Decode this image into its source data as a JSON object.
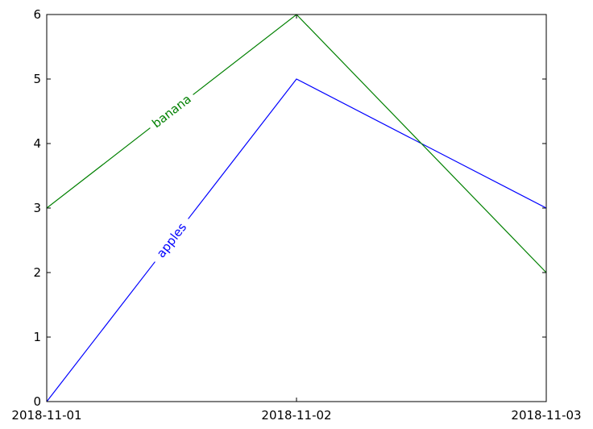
{
  "chart_data": {
    "type": "line",
    "x": [
      "2018-11-01",
      "2018-11-02",
      "2018-11-03"
    ],
    "xticks": [
      "2018-11-01",
      "2018-11-02",
      "2018-11-03"
    ],
    "ylim": [
      0,
      6
    ],
    "yticks": [
      "0",
      "1",
      "2",
      "3",
      "4",
      "5",
      "6"
    ],
    "grid": false,
    "series": [
      {
        "name": "apples",
        "values": [
          0,
          5,
          3
        ],
        "color": "#0000ff"
      },
      {
        "name": "banana",
        "values": [
          3,
          6,
          2
        ],
        "color": "#008000"
      }
    ]
  }
}
